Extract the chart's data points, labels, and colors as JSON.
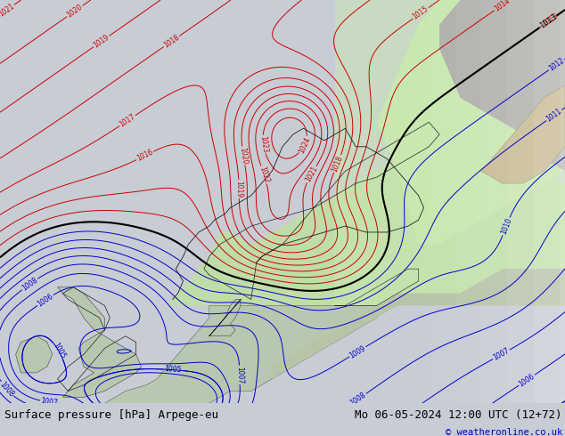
{
  "title_left": "Surface pressure [hPa] Arpege-eu",
  "title_right": "Mo 06-05-2024 12:00 UTC (12+72)",
  "copyright": "© weatheronline.co.uk",
  "bg_ocean": "#c8ccd4",
  "bg_land_green": "#c0dca8",
  "bg_land_grey": "#b8b8b4",
  "bg_land_tan": "#c8bc90",
  "bg_right_bright": "#d8f0c0",
  "footer_bg": "#d8e8c8",
  "footer_text_color": "#000000",
  "copyright_color": "#0000bb",
  "font_size_title": 9,
  "contour_red": "#cc0000",
  "contour_blue": "#0000cc",
  "contour_black": "#000000",
  "xlim": [
    -12,
    42
  ],
  "ylim": [
    49,
    82
  ]
}
